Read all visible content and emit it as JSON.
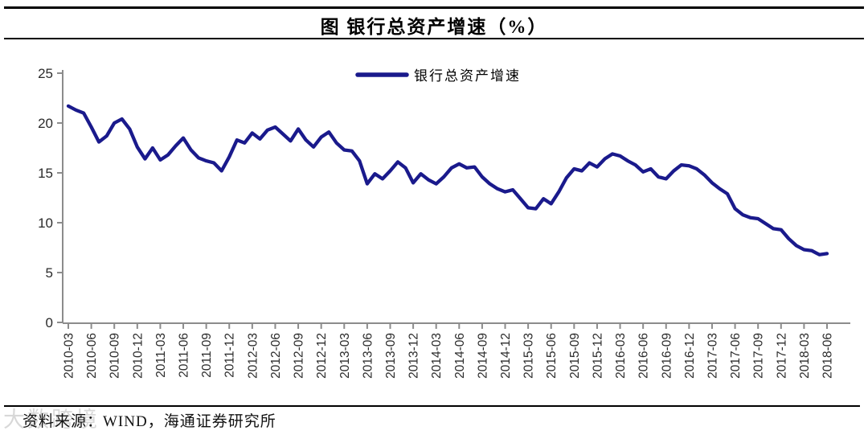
{
  "title": "图  银行总资产增速（%）",
  "source_note": "资料来源：WIND，海通证券研究所",
  "watermark": "大数跨境",
  "colors": {
    "line": "#1a1a8c",
    "axis": "#8c8c8c",
    "tick_text": "#2b2b2b",
    "title_text": "#000000"
  },
  "chart_data": {
    "type": "line",
    "title": "图  银行总资产增速（%）",
    "legend": [
      {
        "name": "银行总资产增速",
        "color": "#1a1a8c"
      }
    ],
    "legend_position": "top-center",
    "grid": false,
    "ylim": [
      0,
      25
    ],
    "yticks": [
      0,
      5,
      10,
      15,
      20,
      25
    ],
    "xtick_labels": [
      "2010-03",
      "2010-06",
      "2010-09",
      "2010-12",
      "2011-03",
      "2011-06",
      "2011-09",
      "2011-12",
      "2012-03",
      "2012-06",
      "2012-09",
      "2012-12",
      "2013-03",
      "2013-06",
      "2013-09",
      "2013-12",
      "2014-03",
      "2014-06",
      "2014-09",
      "2014-12",
      "2015-03",
      "2015-06",
      "2015-09",
      "2015-12",
      "2016-03",
      "2016-06",
      "2016-09",
      "2016-12",
      "2017-03",
      "2017-06",
      "2017-09",
      "2017-12",
      "2018-03",
      "2018-06"
    ],
    "x": [
      "2010-03",
      "2010-04",
      "2010-05",
      "2010-06",
      "2010-07",
      "2010-08",
      "2010-09",
      "2010-10",
      "2010-11",
      "2010-12",
      "2011-01",
      "2011-02",
      "2011-03",
      "2011-04",
      "2011-05",
      "2011-06",
      "2011-07",
      "2011-08",
      "2011-09",
      "2011-10",
      "2011-11",
      "2011-12",
      "2012-01",
      "2012-02",
      "2012-03",
      "2012-04",
      "2012-05",
      "2012-06",
      "2012-07",
      "2012-08",
      "2012-09",
      "2012-10",
      "2012-11",
      "2012-12",
      "2013-01",
      "2013-02",
      "2013-03",
      "2013-04",
      "2013-05",
      "2013-06",
      "2013-07",
      "2013-08",
      "2013-09",
      "2013-10",
      "2013-11",
      "2013-12",
      "2014-01",
      "2014-02",
      "2014-03",
      "2014-04",
      "2014-05",
      "2014-06",
      "2014-07",
      "2014-08",
      "2014-09",
      "2014-10",
      "2014-11",
      "2014-12",
      "2015-01",
      "2015-02",
      "2015-03",
      "2015-04",
      "2015-05",
      "2015-06",
      "2015-07",
      "2015-08",
      "2015-09",
      "2015-10",
      "2015-11",
      "2015-12",
      "2016-01",
      "2016-02",
      "2016-03",
      "2016-04",
      "2016-05",
      "2016-06",
      "2016-07",
      "2016-08",
      "2016-09",
      "2016-10",
      "2016-11",
      "2016-12",
      "2017-01",
      "2017-02",
      "2017-03",
      "2017-04",
      "2017-05",
      "2017-06",
      "2017-07",
      "2017-08",
      "2017-09",
      "2017-10",
      "2017-11",
      "2017-12",
      "2018-01",
      "2018-02",
      "2018-03",
      "2018-04",
      "2018-05",
      "2018-06"
    ],
    "series": [
      {
        "name": "银行总资产增速",
        "values": [
          21.7,
          21.3,
          21.0,
          19.6,
          18.1,
          18.7,
          20.0,
          20.4,
          19.4,
          17.6,
          16.4,
          17.5,
          16.3,
          16.8,
          17.7,
          18.5,
          17.3,
          16.5,
          16.2,
          16.0,
          15.2,
          16.6,
          18.3,
          18.0,
          19.0,
          18.4,
          19.3,
          19.6,
          18.9,
          18.2,
          19.4,
          18.3,
          17.6,
          18.6,
          19.1,
          18.0,
          17.3,
          17.2,
          16.2,
          13.9,
          14.9,
          14.4,
          15.2,
          16.1,
          15.5,
          14.0,
          14.9,
          14.3,
          13.9,
          14.6,
          15.5,
          15.9,
          15.5,
          15.6,
          14.6,
          13.9,
          13.4,
          13.1,
          13.3,
          12.4,
          11.5,
          11.4,
          12.4,
          11.9,
          13.1,
          14.5,
          15.4,
          15.2,
          16.0,
          15.6,
          16.4,
          16.9,
          16.7,
          16.2,
          15.8,
          15.1,
          15.4,
          14.6,
          14.4,
          15.2,
          15.8,
          15.7,
          15.4,
          14.8,
          14.0,
          13.4,
          12.9,
          11.4,
          10.8,
          10.5,
          10.4,
          9.9,
          9.4,
          9.3,
          8.4,
          7.7,
          7.3,
          7.2,
          6.8,
          6.9
        ]
      }
    ]
  }
}
